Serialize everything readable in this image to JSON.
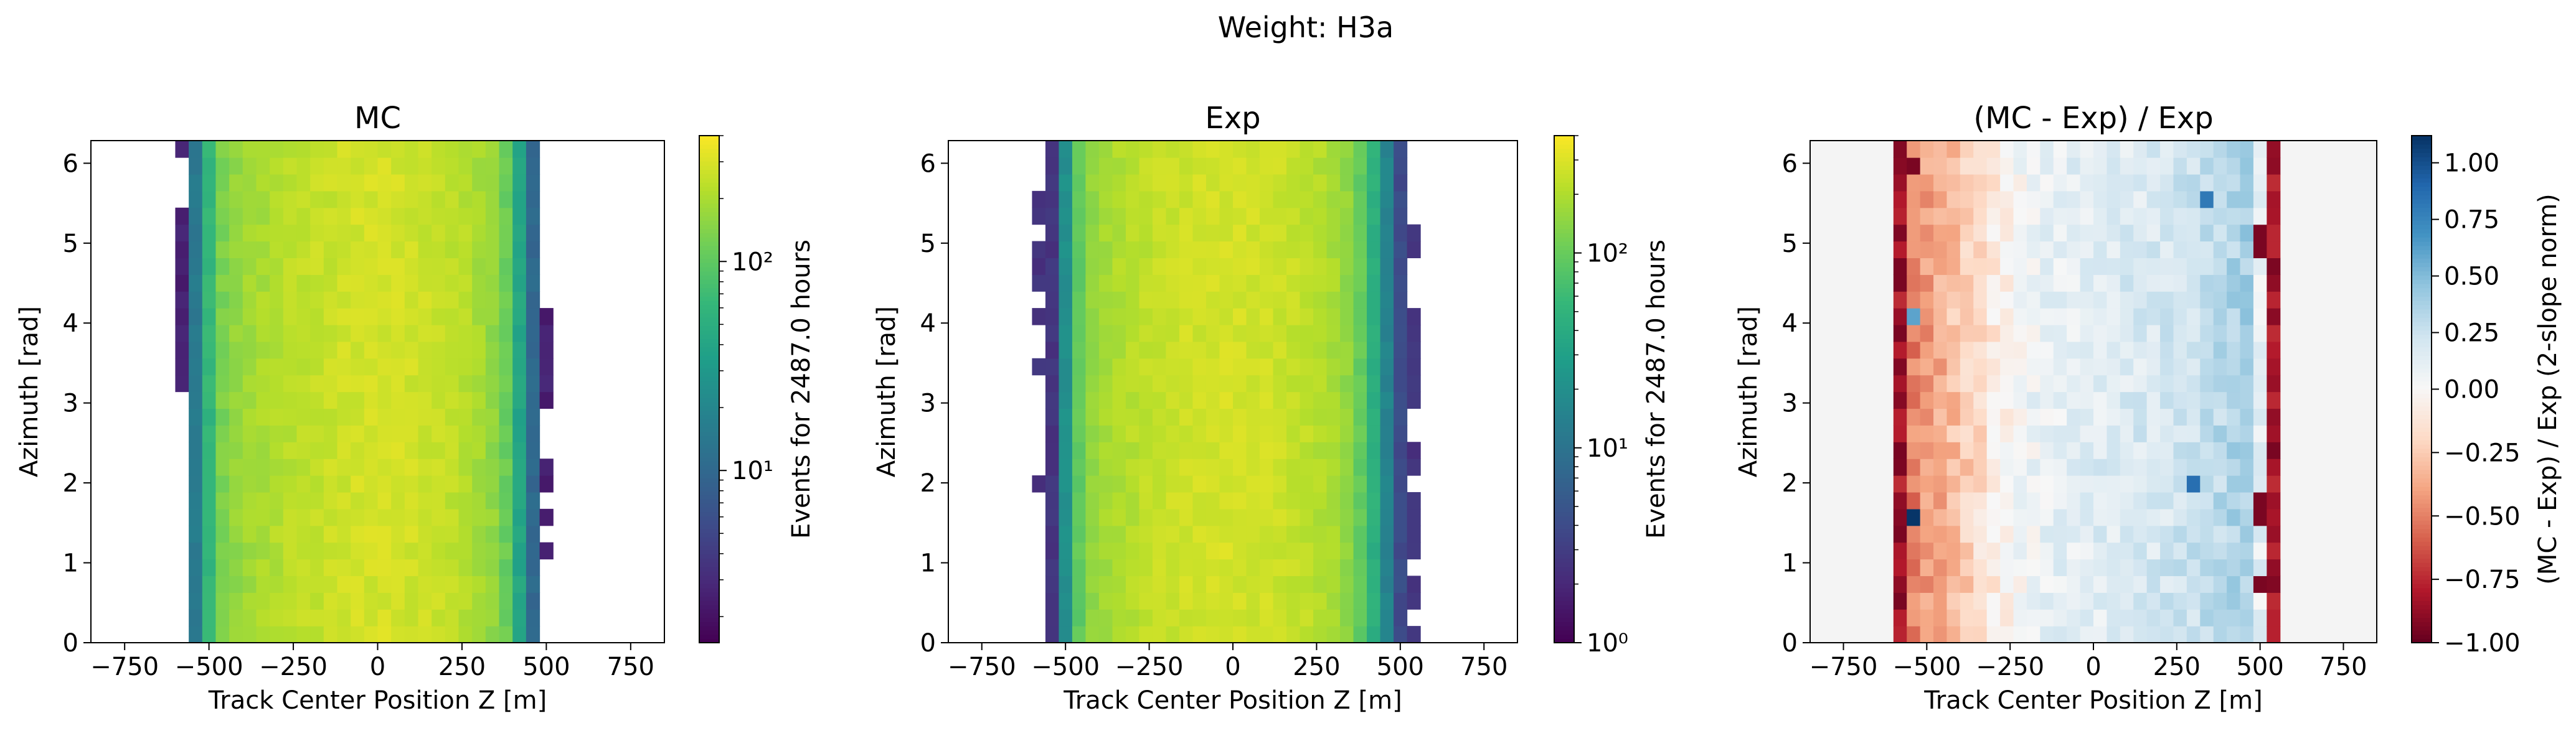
{
  "figure": {
    "suptitle": "Weight: H3a"
  },
  "colors": {
    "viridis": [
      "#440154",
      "#482878",
      "#3e4a89",
      "#31688e",
      "#26828e",
      "#1f9e89",
      "#35b779",
      "#6ece58",
      "#b5de2b",
      "#fde725"
    ],
    "rdbu": [
      "#67001f",
      "#b2182b",
      "#d6604d",
      "#f4a582",
      "#fddbc7",
      "#f7f7f7",
      "#d1e5f0",
      "#92c5de",
      "#4393c3",
      "#2166ac",
      "#053061"
    ],
    "background_ratio": "#f4f4f4"
  },
  "chart_data": [
    {
      "type": "heatmap",
      "title": "MC",
      "xlabel": "Track Center Position Z [m]",
      "ylabel": "Azimuth [rad]",
      "xlim": [
        -850,
        850
      ],
      "ylim": [
        0,
        6.2832
      ],
      "xticks": [
        -750,
        -500,
        -250,
        0,
        250,
        500,
        750
      ],
      "xtick_labels": [
        "−750",
        "−500",
        "−250",
        "0",
        "250",
        "500",
        "750"
      ],
      "yticks": [
        0,
        1,
        2,
        3,
        4,
        5,
        6
      ],
      "ytick_labels": [
        "0",
        "1",
        "2",
        "3",
        "4",
        "5",
        "6"
      ],
      "x_bins": {
        "start": -600,
        "width": 40,
        "count": 30
      },
      "y_bins": {
        "start": 0,
        "width": 0.2094,
        "count": 30
      },
      "colorbar": {
        "label": "Events for 2487.0 hours",
        "scale": "log",
        "range": [
          1.5,
          400
        ],
        "cmap": "viridis",
        "ticks": [
          10,
          100
        ],
        "tick_labels": [
          "10¹",
          "10²"
        ]
      },
      "column_levels": [
        2.5,
        15,
        60,
        130,
        160,
        180,
        195,
        210,
        225,
        235,
        245,
        255,
        265,
        275,
        280,
        285,
        280,
        270,
        260,
        250,
        235,
        215,
        190,
        160,
        110,
        40,
        10,
        2.5,
        0,
        0
      ],
      "edge_bins": {
        "col0_rows": [
          15,
          16,
          17,
          18,
          19,
          20,
          21,
          22,
          23,
          24,
          25,
          29
        ],
        "col27_rows": [
          5,
          7,
          9,
          10,
          14,
          15,
          16,
          17,
          18,
          19
        ]
      }
    },
    {
      "type": "heatmap",
      "title": "Exp",
      "xlabel": "Track Center Position Z [m]",
      "ylabel": "Azimuth [rad]",
      "xlim": [
        -850,
        850
      ],
      "ylim": [
        0,
        6.2832
      ],
      "xticks": [
        -750,
        -500,
        -250,
        0,
        250,
        500,
        750
      ],
      "xtick_labels": [
        "−750",
        "−500",
        "−250",
        "0",
        "250",
        "500",
        "750"
      ],
      "yticks": [
        0,
        1,
        2,
        3,
        4,
        5,
        6
      ],
      "ytick_labels": [
        "0",
        "1",
        "2",
        "3",
        "4",
        "5",
        "6"
      ],
      "x_bins": {
        "start": -600,
        "width": 40,
        "count": 30
      },
      "y_bins": {
        "start": 0,
        "width": 0.2094,
        "count": 30
      },
      "colorbar": {
        "label": "Events for 2487.0 hours",
        "scale": "log",
        "range": [
          1,
          400
        ],
        "cmap": "viridis",
        "ticks": [
          1,
          10,
          100
        ],
        "tick_labels": [
          "10⁰",
          "10¹",
          "10²"
        ]
      },
      "column_levels": [
        0,
        2.5,
        20,
        90,
        150,
        175,
        195,
        210,
        225,
        240,
        250,
        260,
        265,
        270,
        275,
        270,
        265,
        260,
        250,
        240,
        225,
        205,
        185,
        150,
        95,
        45,
        15,
        4,
        2.5,
        0
      ],
      "edge_bins": {
        "col0_rows": [
          9,
          16,
          19,
          21,
          22,
          23,
          25,
          26
        ],
        "col28_rows": [
          0,
          2,
          3,
          5,
          6,
          7,
          8,
          10,
          11,
          14,
          15,
          16,
          17,
          18,
          19,
          23,
          24
        ]
      }
    },
    {
      "type": "heatmap",
      "title": "(MC - Exp) / Exp",
      "xlabel": "Track Center Position Z [m]",
      "ylabel": "Azimuth [rad]",
      "xlim": [
        -850,
        850
      ],
      "ylim": [
        0,
        6.2832
      ],
      "xticks": [
        -750,
        -500,
        -250,
        0,
        250,
        500,
        750
      ],
      "xtick_labels": [
        "−750",
        "−500",
        "−250",
        "0",
        "250",
        "500",
        "750"
      ],
      "yticks": [
        0,
        1,
        2,
        3,
        4,
        5,
        6
      ],
      "ytick_labels": [
        "0",
        "1",
        "2",
        "3",
        "4",
        "5",
        "6"
      ],
      "x_bins": {
        "start": -600,
        "width": 40,
        "count": 30
      },
      "y_bins": {
        "start": 0,
        "width": 0.2094,
        "count": 30
      },
      "colorbar": {
        "label": "(MC - Exp) / Exp (2-slope norm)",
        "scale": "twoslope",
        "range": [
          -1.0,
          1.12
        ],
        "center": 0,
        "cmap": "RdBu",
        "ticks": [
          -1.0,
          -0.75,
          -0.5,
          -0.25,
          0.0,
          0.25,
          0.5,
          0.75,
          1.0
        ],
        "tick_labels": [
          "−1.00",
          "−0.75",
          "−0.50",
          "−0.25",
          "0.00",
          "0.25",
          "0.50",
          "0.75",
          "1.00"
        ]
      },
      "column_levels": [
        -0.85,
        -0.5,
        -0.42,
        -0.36,
        -0.3,
        -0.24,
        -0.17,
        -0.1,
        -0.05,
        0.02,
        0.06,
        0.09,
        0.1,
        0.12,
        0.13,
        0.14,
        0.15,
        0.16,
        0.17,
        0.18,
        0.2,
        0.22,
        0.24,
        0.27,
        0.3,
        0.34,
        0.38,
        0.1,
        -0.85,
        0
      ],
      "special_cells": [
        {
          "col": 1,
          "row": 7,
          "value": 1.1
        },
        {
          "col": 1,
          "row": 19,
          "value": 0.6
        },
        {
          "col": 1,
          "row": 28,
          "value": -0.95
        },
        {
          "col": 22,
          "row": 9,
          "value": 0.85
        },
        {
          "col": 23,
          "row": 26,
          "value": 0.8
        },
        {
          "col": 27,
          "row": 3,
          "value": -0.95
        },
        {
          "col": 27,
          "row": 7,
          "value": -0.95
        },
        {
          "col": 27,
          "row": 8,
          "value": -0.95
        },
        {
          "col": 27,
          "row": 23,
          "value": -0.95
        },
        {
          "col": 27,
          "row": 24,
          "value": -0.95
        },
        {
          "col": 0,
          "row": 6,
          "value": -0.95
        },
        {
          "col": 0,
          "row": 18,
          "value": -0.95
        },
        {
          "col": 0,
          "row": 22,
          "value": -0.95
        },
        {
          "col": 0,
          "row": 21,
          "value": -0.95
        }
      ]
    }
  ]
}
